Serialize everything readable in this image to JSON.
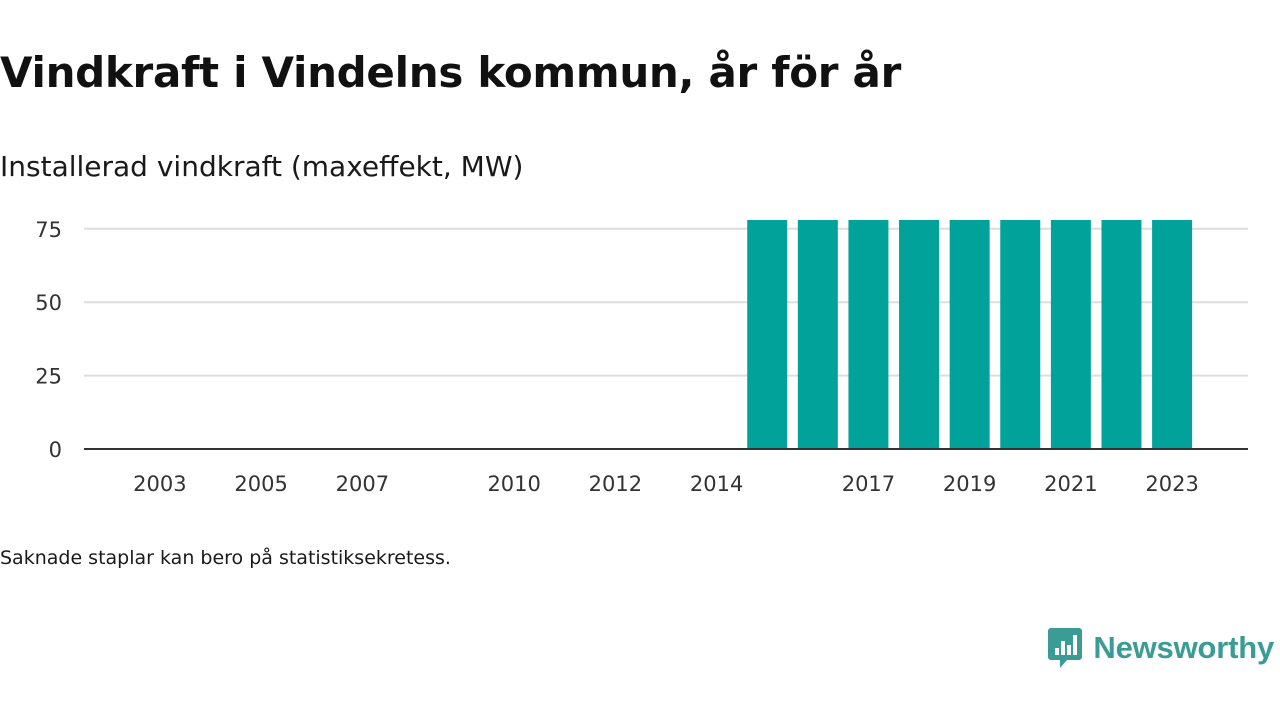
{
  "title": "Vindkraft i Vindelns kommun, år för år",
  "subtitle": "Installerad vindkraft (maxeffekt, MW)",
  "note": "Saknade staplar kan bero på statistiksekretess.",
  "brand": {
    "name": "Newsworthy",
    "color": "#3a9c95",
    "icon": "newsworthy-logo-icon"
  },
  "colors": {
    "bar": "#00a29a",
    "grid": "#dddddd",
    "axis": "#333333"
  },
  "chart_data": {
    "type": "bar",
    "title": "Vindkraft i Vindelns kommun, år för år",
    "subtitle": "Installerad vindkraft (maxeffekt, MW)",
    "xlabel": "",
    "ylabel": "",
    "ylim": [
      0,
      78
    ],
    "yticks": [
      0,
      25,
      50,
      75
    ],
    "xlim": [
      2001.5,
      2024.5
    ],
    "xticks": [
      2003,
      2005,
      2007,
      2010,
      2012,
      2014,
      2017,
      2019,
      2021,
      2023
    ],
    "grid": true,
    "legend": "none",
    "categories": [
      2015,
      2016,
      2017,
      2018,
      2019,
      2020,
      2021,
      2022,
      2023
    ],
    "values": [
      78,
      78,
      78,
      78,
      78,
      78,
      78,
      78,
      78
    ]
  }
}
